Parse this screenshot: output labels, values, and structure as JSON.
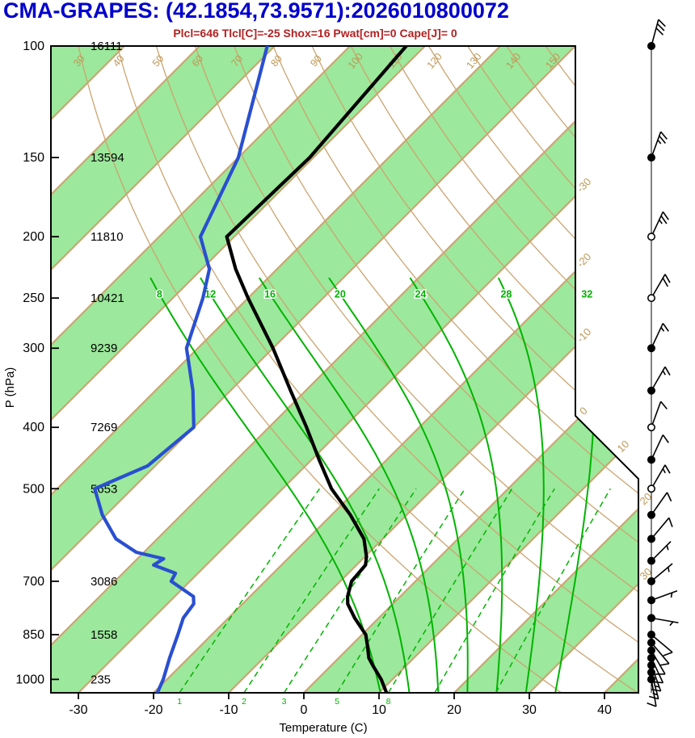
{
  "title": {
    "text": "CMA-GRAPES: (42.1854,73.9571):2026010800072",
    "color": "#0000CD"
  },
  "subtitle": {
    "text": "Plcl=646 Tlcl[C]=-25 Shox=16 Pwat[cm]=0 Cape[J]= 0",
    "color": "#B22222"
  },
  "axes": {
    "x_label": "Temperature (C)",
    "y_label": "P (hPa)",
    "temp_ticks": [
      -30,
      -20,
      -10,
      0,
      10,
      20,
      30,
      40
    ],
    "pressure_ticks": [
      {
        "p": 100,
        "height": "16111"
      },
      {
        "p": 150,
        "height": "13594"
      },
      {
        "p": 200,
        "height": "11810"
      },
      {
        "p": 250,
        "height": "10421"
      },
      {
        "p": 300,
        "height": "9239"
      },
      {
        "p": 400,
        "height": "7269"
      },
      {
        "p": 500,
        "height": "5653"
      },
      {
        "p": 700,
        "height": "3086"
      },
      {
        "p": 850,
        "height": "1558"
      },
      {
        "p": 1000,
        "height": "235"
      }
    ],
    "right_isotherm_labels": [
      -30,
      -20,
      -10,
      0,
      10,
      20,
      30
    ]
  },
  "background": {
    "colors": {
      "band": "#9CE89C",
      "tan": "#CCA470",
      "tan_label": "#BE9754",
      "green": "#00B400",
      "outline": "#000000"
    },
    "green_band_start_temps": [
      -120,
      -100,
      -80,
      -60,
      -40,
      -20,
      0,
      20,
      40
    ],
    "isotherm_range": {
      "min": -120,
      "max": 40,
      "step": 10
    },
    "dry_adiabat_labels": [
      30,
      40,
      50,
      60,
      70,
      80,
      90,
      100,
      110,
      120,
      130,
      140,
      150,
      160
    ],
    "moist_adiabat_labels": [
      8,
      12,
      16,
      20,
      24,
      28,
      32
    ],
    "mixing_ratio_lines": [
      1,
      2,
      3,
      5,
      8,
      12,
      20
    ],
    "mixing_ratio_labeled": [
      1,
      2,
      3,
      5,
      8
    ]
  },
  "curve_colors": {
    "temperature": "#000000",
    "dewpoint": "#2A4FD0",
    "wind": "#000000"
  },
  "chart_data": {
    "type": "line",
    "subtype": "skewt-log-p-sounding",
    "title": "CMA-GRAPES: (42.1854,73.9571):2026010800072",
    "xlabel": "Temperature (C)",
    "ylabel": "P (hPa)",
    "x_range_C": [
      -30,
      40
    ],
    "pressure_range_hPa": [
      100,
      1050
    ],
    "station": {
      "lat": 42.1854,
      "lon": 73.9571,
      "run": "2026010800072"
    },
    "indices": {
      "Plcl": 646,
      "Tlcl_C": -25,
      "Shox": 16,
      "Pwat_cm": 0,
      "Cape_J": 0
    },
    "temperature_C": [
      [
        1050,
        11
      ],
      [
        1000,
        8.5
      ],
      [
        950,
        5.5
      ],
      [
        925,
        4
      ],
      [
        885,
        2.2
      ],
      [
        850,
        0.5
      ],
      [
        800,
        -3.2
      ],
      [
        760,
        -6
      ],
      [
        740,
        -7
      ],
      [
        700,
        -8.5
      ],
      [
        660,
        -8.8
      ],
      [
        640,
        -9.8
      ],
      [
        600,
        -12.5
      ],
      [
        550,
        -17.5
      ],
      [
        500,
        -23.5
      ],
      [
        450,
        -29
      ],
      [
        400,
        -35
      ],
      [
        350,
        -42
      ],
      [
        300,
        -50
      ],
      [
        250,
        -60
      ],
      [
        225,
        -65.5
      ],
      [
        200,
        -71
      ],
      [
        150,
        -70.5
      ],
      [
        100,
        -72.5
      ]
    ],
    "dewpoint_C": [
      [
        1050,
        -19.5
      ],
      [
        1000,
        -20.5
      ],
      [
        925,
        -22.5
      ],
      [
        850,
        -24.5
      ],
      [
        800,
        -26
      ],
      [
        760,
        -26.5
      ],
      [
        740,
        -27.5
      ],
      [
        700,
        -32.5
      ],
      [
        680,
        -33
      ],
      [
        660,
        -37
      ],
      [
        645,
        -36.5
      ],
      [
        630,
        -41
      ],
      [
        600,
        -45.5
      ],
      [
        550,
        -50.5
      ],
      [
        500,
        -55
      ],
      [
        460,
        -51
      ],
      [
        400,
        -50
      ],
      [
        350,
        -55
      ],
      [
        300,
        -61.5
      ],
      [
        250,
        -66
      ],
      [
        225,
        -69
      ],
      [
        200,
        -74.5
      ],
      [
        150,
        -80
      ],
      [
        100,
        -91
      ]
    ],
    "wind": [
      {
        "p": 100,
        "dir": 15,
        "spd": 30,
        "dot": "filled"
      },
      {
        "p": 150,
        "dir": 20,
        "spd": 25,
        "dot": "filled"
      },
      {
        "p": 200,
        "dir": 25,
        "spd": 25,
        "dot": "open"
      },
      {
        "p": 250,
        "dir": 30,
        "spd": 20,
        "dot": "open"
      },
      {
        "p": 300,
        "dir": 25,
        "spd": 15,
        "dot": "filled"
      },
      {
        "p": 350,
        "dir": 30,
        "spd": 15,
        "dot": "filled"
      },
      {
        "p": 400,
        "dir": 20,
        "spd": 10,
        "dot": "open"
      },
      {
        "p": 450,
        "dir": 25,
        "spd": 10,
        "dot": "filled"
      },
      {
        "p": 500,
        "dir": 30,
        "spd": 15,
        "dot": "open"
      },
      {
        "p": 550,
        "dir": 35,
        "spd": 10,
        "dot": "filled"
      },
      {
        "p": 600,
        "dir": 40,
        "spd": 10,
        "dot": "filled"
      },
      {
        "p": 650,
        "dir": 45,
        "spd": 5,
        "dot": "filled"
      },
      {
        "p": 700,
        "dir": 50,
        "spd": 5,
        "dot": "filled"
      },
      {
        "p": 750,
        "dir": 70,
        "spd": 5,
        "dot": "filled"
      },
      {
        "p": 800,
        "dir": 100,
        "spd": 5,
        "dot": "filled"
      },
      {
        "p": 850,
        "dir": 130,
        "spd": 10,
        "dot": "filled"
      },
      {
        "p": 875,
        "dir": 140,
        "spd": 10,
        "dot": "filled"
      },
      {
        "p": 900,
        "dir": 150,
        "spd": 10,
        "dot": "filled"
      },
      {
        "p": 925,
        "dir": 155,
        "spd": 10,
        "dot": "filled"
      },
      {
        "p": 950,
        "dir": 160,
        "spd": 15,
        "dot": "filled"
      },
      {
        "p": 975,
        "dir": 165,
        "spd": 15,
        "dot": "filled"
      },
      {
        "p": 1000,
        "dir": 170,
        "spd": 10,
        "dot": "filled"
      }
    ]
  }
}
